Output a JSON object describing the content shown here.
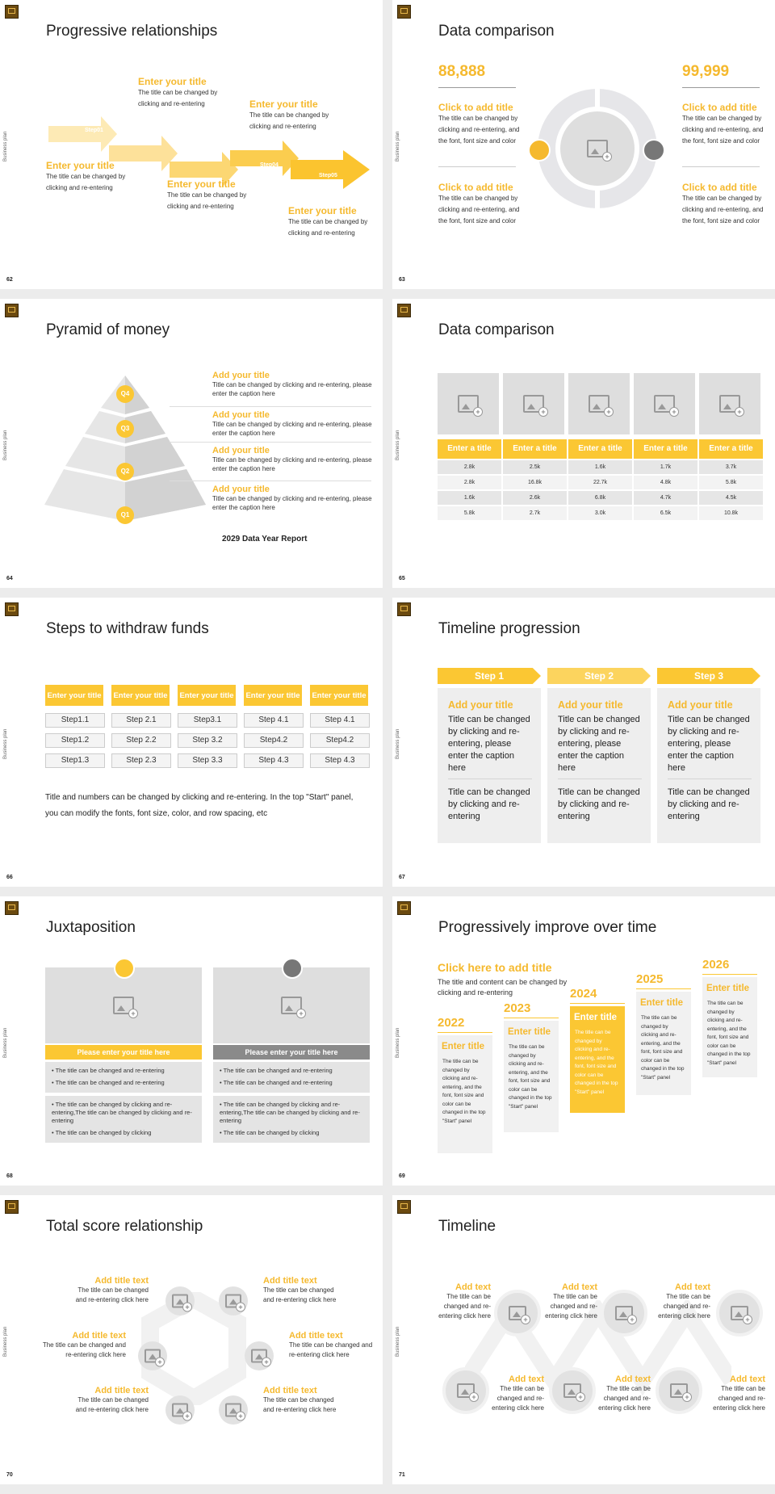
{
  "brand": {
    "side_label": "Business plan"
  },
  "colors": {
    "accent": "#f5b92e",
    "accent_light": "#fde7a8",
    "panel": "#dedede"
  },
  "s62": {
    "page": "62",
    "title": "Progressive relationships",
    "steps": [
      "Step01",
      "Step02",
      "Step03",
      "Step04",
      "Step05"
    ],
    "items": [
      {
        "title": "Enter your title",
        "text": "The title can be changed by clicking and re-entering"
      },
      {
        "title": "Enter your title",
        "text": "The title can be changed by clicking and re-entering"
      },
      {
        "title": "Enter your title",
        "text": "The title can be changed by clicking and re-entering"
      },
      {
        "title": "Enter your title",
        "text": "The title can be changed by clicking and re-entering"
      },
      {
        "title": "Enter your title",
        "text": "The title can be changed by clicking and re-entering"
      }
    ]
  },
  "s63": {
    "page": "63",
    "title": "Data comparison",
    "left_number": "88,888",
    "right_number": "99,999",
    "items": [
      {
        "title": "Click to add title",
        "text": "The title can be changed by clicking and re-entering, and the font, font size and color"
      },
      {
        "title": "Click to add title",
        "text": "The title can be changed by clicking and re-entering, and the font, font size and color"
      },
      {
        "title": "Click to add title",
        "text": "The title can be changed by clicking and re-entering, and the font, font size and color"
      },
      {
        "title": "Click to add title",
        "text": "The title can be changed by clicking and re-entering, and the font, font size and color"
      }
    ]
  },
  "s64": {
    "page": "64",
    "title": "Pyramid of money",
    "caption": "2029 Data Year Report",
    "levels": [
      "Q4",
      "Q3",
      "Q2",
      "Q1"
    ],
    "items": [
      {
        "title": "Add your title",
        "text": "Title can be changed by clicking and re-entering, please enter the caption here"
      },
      {
        "title": "Add your title",
        "text": "Title can be changed by clicking and re-entering, please enter the caption here"
      },
      {
        "title": "Add your title",
        "text": "Title can be changed by clicking and re-entering, please enter the caption here"
      },
      {
        "title": "Add your title",
        "text": "Title can be changed by clicking and re-entering, please enter the caption here"
      }
    ]
  },
  "s65": {
    "page": "65",
    "title": "Data comparison",
    "headers": [
      "Enter a title",
      "Enter a title",
      "Enter a title",
      "Enter a title",
      "Enter a title"
    ],
    "rows": [
      [
        "2.8k",
        "2.5k",
        "1.6k",
        "1.7k",
        "3.7k"
      ],
      [
        "2.8k",
        "16.8k",
        "22.7k",
        "4.8k",
        "5.8k"
      ],
      [
        "1.6k",
        "2.6k",
        "6.8k",
        "4.7k",
        "4.5k"
      ],
      [
        "5.8k",
        "2.7k",
        "3.0k",
        "6.5k",
        "10.8k"
      ]
    ]
  },
  "s66": {
    "page": "66",
    "title": "Steps to withdraw funds",
    "columns": [
      {
        "head": "Enter your title",
        "steps": [
          "Step1.1",
          "Step1.2",
          "Step1.3"
        ]
      },
      {
        "head": "Enter your title",
        "steps": [
          "Step 2.1",
          "Step 2.2",
          "Step 2.3"
        ]
      },
      {
        "head": "Enter your title",
        "steps": [
          "Step3.1",
          "Step 3.2",
          "Step 3.3"
        ]
      },
      {
        "head": "Enter your title",
        "steps": [
          "Step 4.1",
          "Step4.2",
          "Step 4.3"
        ]
      },
      {
        "head": "Enter your title",
        "steps": [
          "Step 4.1",
          "Step4.2",
          "Step 4.3"
        ]
      }
    ],
    "note": "Title and numbers can be changed by clicking and re-entering. In the top \"Start\" panel, you can modify the fonts, font size, color, and row spacing, etc"
  },
  "s67": {
    "page": "67",
    "title": "Timeline progression",
    "cols": [
      {
        "step": "Step 1",
        "title": "Add your title",
        "text1": "Title can be changed by clicking and re-entering, please enter the caption here",
        "text2": "Title can be changed by clicking and re-entering"
      },
      {
        "step": "Step 2",
        "title": "Add your title",
        "text1": "Title can be changed by clicking and re-entering, please enter the caption here",
        "text2": "Title can be changed by clicking and re-entering"
      },
      {
        "step": "Step 3",
        "title": "Add your title",
        "text1": "Title can be changed by clicking and re-entering, please enter the caption here",
        "text2": "Title can be changed by clicking and re-entering"
      }
    ]
  },
  "s68": {
    "page": "68",
    "title": "Juxtaposition",
    "cards": [
      {
        "bar": "Please enter your title here",
        "b1": "The title can be changed and re-entering",
        "b2": "The title can be changed and re-entering",
        "b3": "The title can be changed by clicking and re-entering,The title can be changed by clicking and re-entering",
        "b4": "The title can be changed by clicking"
      },
      {
        "bar": "Please enter your title here",
        "b1": "The title can be changed and re-entering",
        "b2": "The title can be changed and re-entering",
        "b3": "The title can be changed by clicking and re-entering,The title can be changed by clicking and re-entering",
        "b4": "The title can be changed by clicking"
      }
    ]
  },
  "s69": {
    "page": "69",
    "title": "Progressively improve over time",
    "head": "Click here to add title",
    "sub": "The title and content can be changed by clicking and re-entering",
    "years": [
      {
        "year": "2022",
        "title": "Enter title",
        "text": "The title can be changed by clicking and re-entering, and the font, font size and color can be changed in the top \"Start\" panel"
      },
      {
        "year": "2023",
        "title": "Enter title",
        "text": "The title can be changed by clicking and re-entering, and the font, font size and color can be changed in the top \"Start\" panel"
      },
      {
        "year": "2024",
        "title": "Enter title",
        "text": "The title can be changed by clicking and re-entering, and the font, font size and color can be changed in the top \"Start\" panel"
      },
      {
        "year": "2025",
        "title": "Enter title",
        "text": "The title can be changed by clicking and re-entering, and the font, font size and color can be changed in the top \"Start\" panel"
      },
      {
        "year": "2026",
        "title": "Enter title",
        "text": "The title can be changed by clicking and re-entering, and the font, font size and color can be changed in the top \"Start\" panel"
      }
    ]
  },
  "s70": {
    "page": "70",
    "title": "Total score relationship",
    "items": [
      {
        "title": "Add title text",
        "text": "The title can be changed and re-entering click here"
      },
      {
        "title": "Add title text",
        "text": "The title can be changed and re-entering click here"
      },
      {
        "title": "Add title text",
        "text": "The title can be changed and re-entering click here"
      },
      {
        "title": "Add title text",
        "text": "The title can be changed and re-entering click here"
      },
      {
        "title": "Add title text",
        "text": "The title can be changed and re-entering click here"
      },
      {
        "title": "Add title text",
        "text": "The title can be changed and re-entering click here"
      }
    ]
  },
  "s71": {
    "page": "71",
    "title": "Timeline",
    "items": [
      {
        "title": "Add text",
        "text": "The title can be changed and re-entering click here"
      },
      {
        "title": "Add text",
        "text": "The title can be changed and re-entering click here"
      },
      {
        "title": "Add text",
        "text": "The title can be changed and re-entering click here"
      },
      {
        "title": "Add text",
        "text": "The title can be changed and re-entering click here"
      },
      {
        "title": "Add text",
        "text": "The title can be changed and re-entering click here"
      },
      {
        "title": "Add text",
        "text": "The title can be changed and re-entering click here"
      }
    ]
  }
}
